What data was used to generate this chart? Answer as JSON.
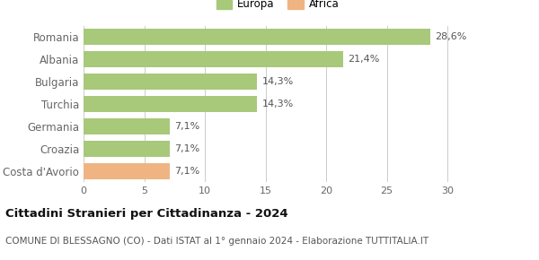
{
  "categories": [
    "Costa d'Avorio",
    "Croazia",
    "Germania",
    "Turchia",
    "Bulgaria",
    "Albania",
    "Romania"
  ],
  "values": [
    7.1,
    7.1,
    7.1,
    14.3,
    14.3,
    21.4,
    28.6
  ],
  "bar_colors": [
    "#f0b482",
    "#a8c87a",
    "#a8c87a",
    "#a8c87a",
    "#a8c87a",
    "#a8c87a",
    "#a8c87a"
  ],
  "labels": [
    "7,1%",
    "7,1%",
    "7,1%",
    "14,3%",
    "14,3%",
    "21,4%",
    "28,6%"
  ],
  "legend_entries": [
    {
      "label": "Europa",
      "color": "#a8c87a"
    },
    {
      "label": "Africa",
      "color": "#f0b482"
    }
  ],
  "xlim": [
    0,
    32
  ],
  "xticks": [
    0,
    5,
    10,
    15,
    20,
    25,
    30
  ],
  "title_bold": "Cittadini Stranieri per Cittadinanza - 2024",
  "subtitle": "COMUNE DI BLESSAGNO (CO) - Dati ISTAT al 1° gennaio 2024 - Elaborazione TUTTITALIA.IT",
  "bar_height": 0.72,
  "background_color": "#ffffff",
  "grid_color": "#cccccc",
  "label_fontsize": 8.0,
  "ytick_fontsize": 8.5,
  "xtick_fontsize": 8.0,
  "title_fontsize": 9.5,
  "subtitle_fontsize": 7.5
}
